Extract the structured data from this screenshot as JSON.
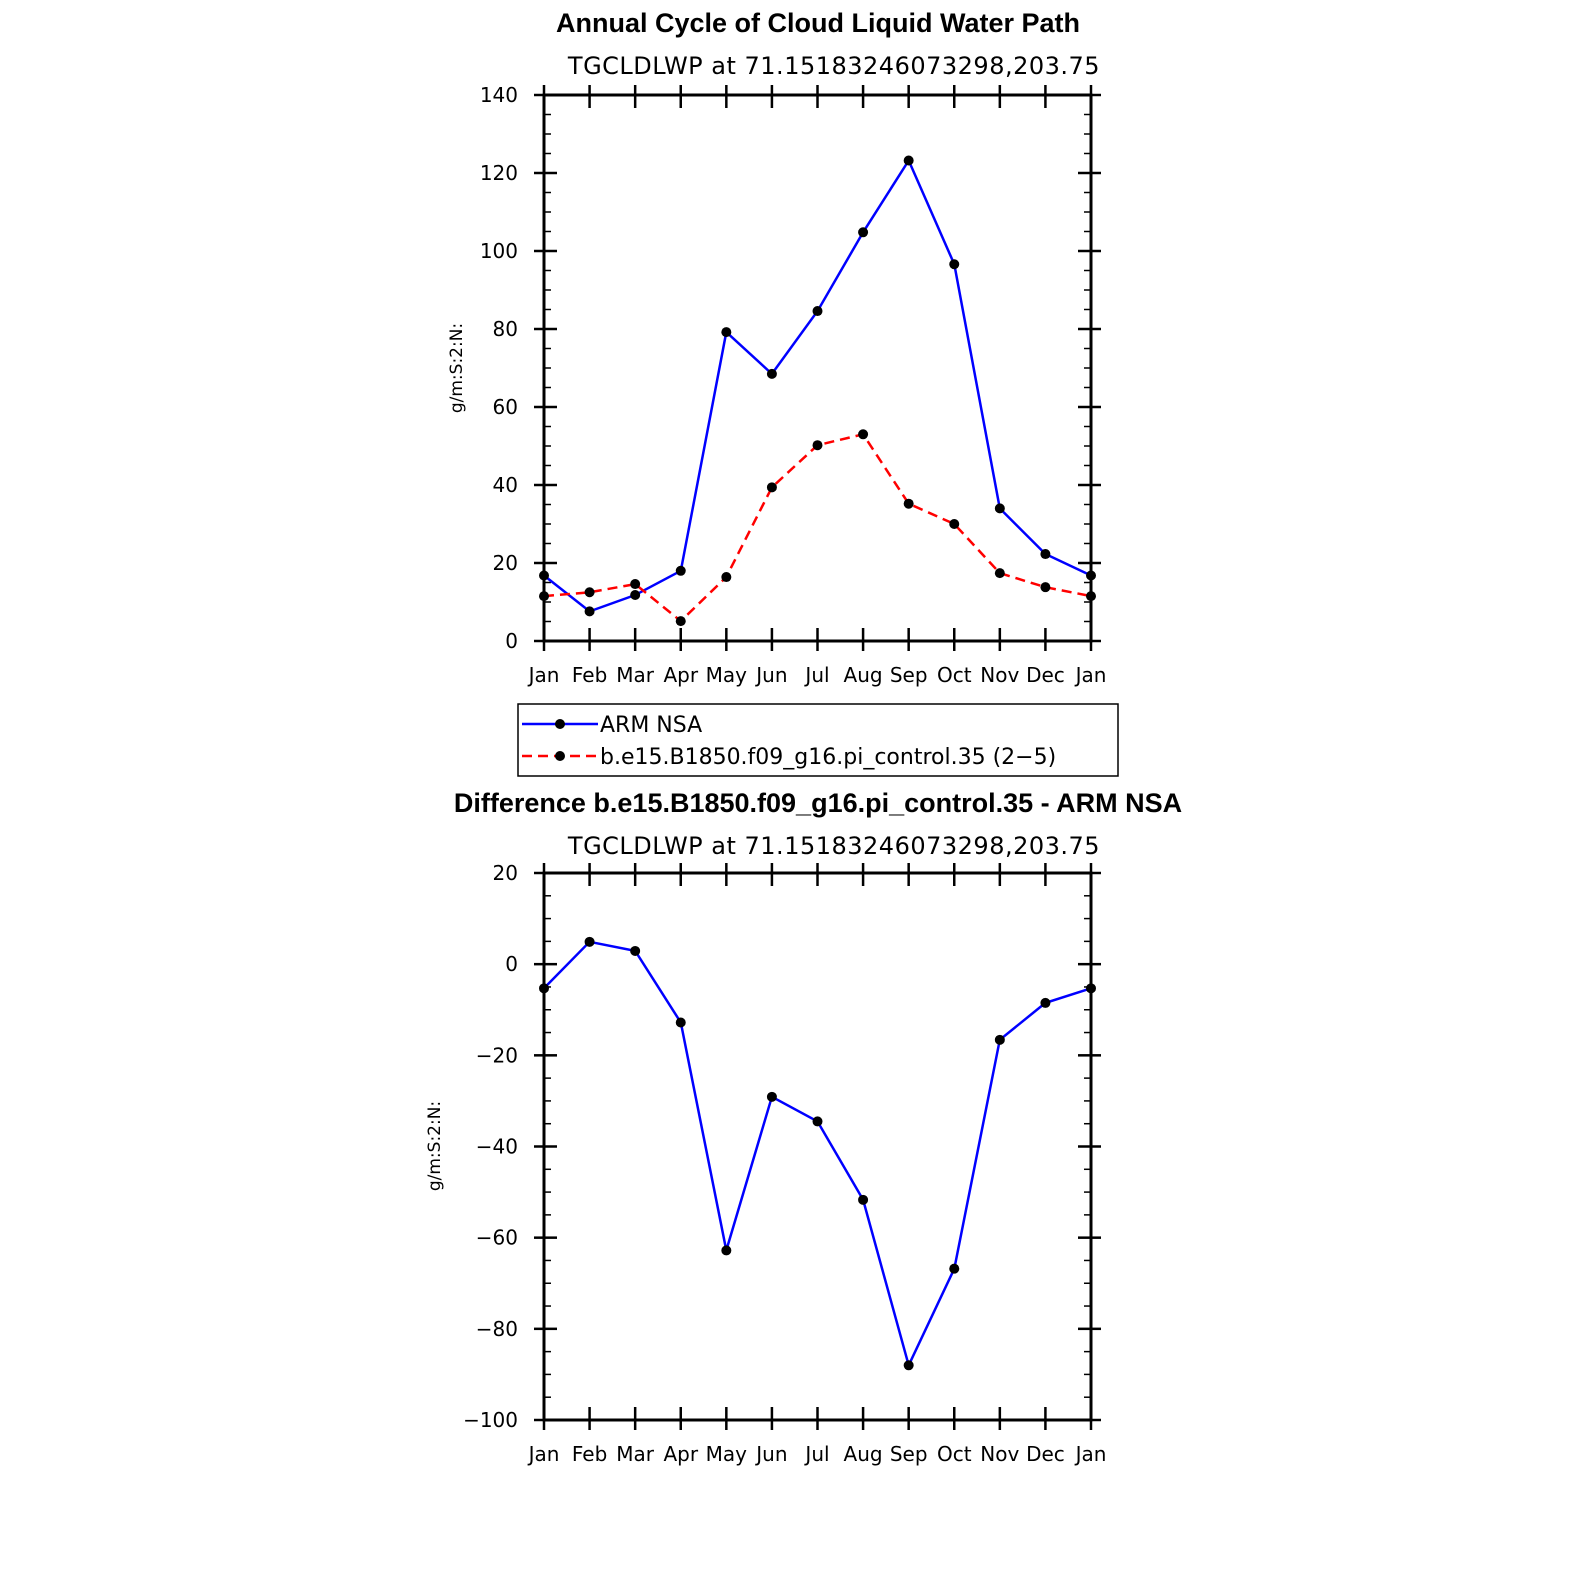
{
  "chart_data": [
    {
      "type": "line",
      "title": "Annual Cycle of Cloud Liquid Water Path",
      "subtitle": "TGCLDLWP at 71.15183246073298,203.75",
      "ylabel": "g/m:S:2:N:",
      "xlabel": "",
      "categories": [
        "Jan",
        "Feb",
        "Mar",
        "Apr",
        "May",
        "Jun",
        "Jul",
        "Aug",
        "Sep",
        "Oct",
        "Nov",
        "Dec",
        "Jan"
      ],
      "ylim": [
        0,
        140
      ],
      "yticks": [
        0,
        20,
        40,
        60,
        80,
        100,
        120,
        140
      ],
      "series": [
        {
          "name": "ARM NSA",
          "color": "#0000ff",
          "dash": "solid",
          "values": [
            16.8,
            7.6,
            11.8,
            18.0,
            79.2,
            68.5,
            84.6,
            104.8,
            123.2,
            96.6,
            34.0,
            22.3,
            16.8
          ]
        },
        {
          "name": "b.e15.B1850.f09_g16.pi_control.35 (2−5)",
          "color": "#ff0000",
          "dash": "dashed",
          "values": [
            11.5,
            12.5,
            14.6,
            5.1,
            16.4,
            39.4,
            50.2,
            53.0,
            35.2,
            30.0,
            17.4,
            13.8,
            11.5
          ]
        }
      ],
      "legend": "below"
    },
    {
      "type": "line",
      "title": "Difference b.e15.B1850.f09_g16.pi_control.35 - ARM NSA",
      "subtitle": "TGCLDLWP at 71.15183246073298,203.75",
      "ylabel": "g/m:S:2:N:",
      "xlabel": "",
      "categories": [
        "Jan",
        "Feb",
        "Mar",
        "Apr",
        "May",
        "Jun",
        "Jul",
        "Aug",
        "Sep",
        "Oct",
        "Nov",
        "Dec",
        "Jan"
      ],
      "ylim": [
        -100,
        20
      ],
      "yticks": [
        -100,
        -80,
        -60,
        -40,
        -20,
        0,
        20
      ],
      "series": [
        {
          "name": "Difference",
          "color": "#0000ff",
          "dash": "solid",
          "values": [
            -5.3,
            4.9,
            2.9,
            -12.8,
            -62.8,
            -29.1,
            -34.5,
            -51.7,
            -88.0,
            -66.8,
            -16.6,
            -8.5,
            -5.3
          ]
        }
      ]
    }
  ]
}
